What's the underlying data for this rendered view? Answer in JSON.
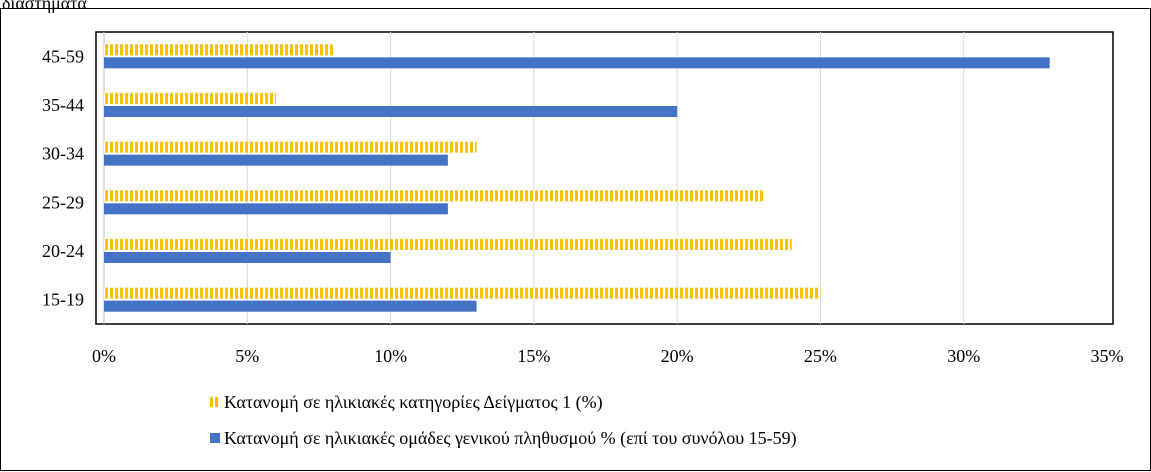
{
  "header_fragment": "διαστήματα",
  "chart_data": {
    "type": "bar",
    "orientation": "horizontal",
    "categories": [
      "15-19",
      "20-24",
      "25-29",
      "30-34",
      "35-44",
      "45-59"
    ],
    "series": [
      {
        "name": "Κατανομή σε ηλικιακές κατηγορίες Δείγματος 1 (%)",
        "values": [
          25,
          24,
          23,
          13,
          6,
          8
        ],
        "color": "#FFC000",
        "pattern": "vertical-stripes"
      },
      {
        "name": "Κατανομή σε ηλικιακές ομάδες γενικού πληθυσμού % (επί του συνόλου 15-59)",
        "values": [
          13,
          10,
          12,
          12,
          20,
          33
        ],
        "color": "#4472C4",
        "pattern": "solid"
      }
    ],
    "x_ticks": [
      "0%",
      "5%",
      "10%",
      "15%",
      "20%",
      "25%",
      "30%",
      "35%"
    ],
    "xlim": [
      0,
      35
    ],
    "grid": true,
    "legend_position": "bottom-left",
    "title": "",
    "xlabel": "",
    "ylabel": ""
  }
}
